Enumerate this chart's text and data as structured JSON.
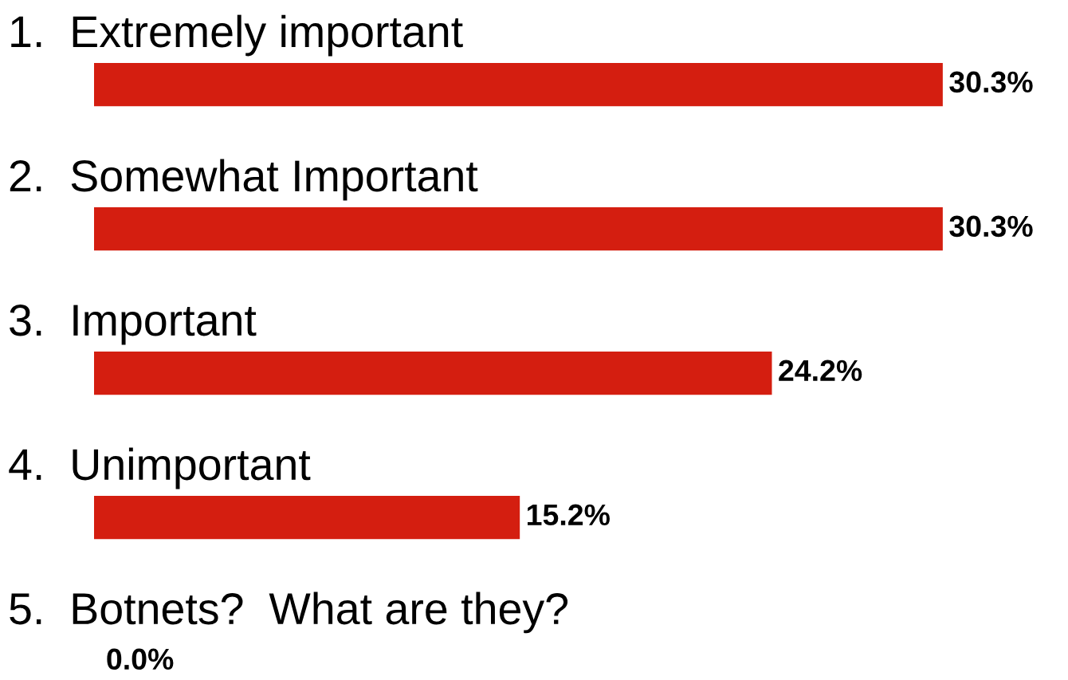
{
  "chart_data": {
    "type": "bar",
    "orientation": "horizontal",
    "categories": [
      "1.  Extremely important",
      "2.  Somewhat Important",
      "3.  Important",
      "4.  Unimportant",
      "5.  Botnets?  What are they?"
    ],
    "values": [
      30.3,
      30.3,
      24.2,
      15.2,
      0.0
    ],
    "value_labels": [
      "30.3%",
      "30.3%",
      "24.2%",
      "15.2%",
      "0.0%"
    ],
    "color": "#d41e10"
  }
}
